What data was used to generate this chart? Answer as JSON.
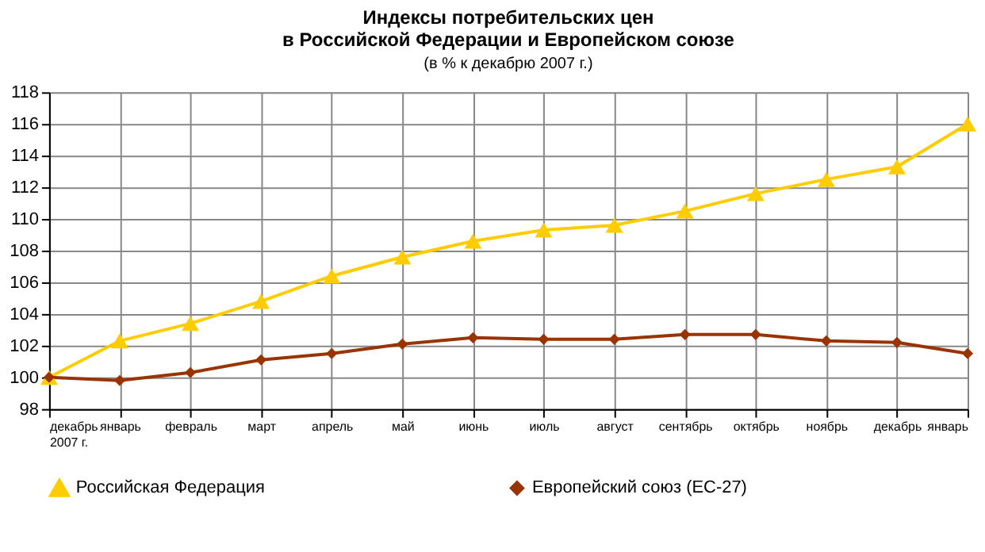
{
  "chart_data": {
    "type": "line",
    "title": "Индексы потребительских цен\nв Российской Федерации и Европейском союзе",
    "subtitle": "(в % к декабрю 2007 г.)",
    "categories": [
      "декабрь\n2007 г.",
      "январь",
      "февраль",
      "март",
      "апрель",
      "май",
      "июнь",
      "июль",
      "август",
      "сентябрь",
      "октябрь",
      "ноябрь",
      "декабрь",
      "январь"
    ],
    "series": [
      {
        "name": "Российская Федерация",
        "color": "#ffcc00",
        "marker": "triangle",
        "values": [
          100,
          102.3,
          103.4,
          104.8,
          106.4,
          107.6,
          108.6,
          109.3,
          109.6,
          110.5,
          111.6,
          112.5,
          113.3,
          116.0
        ]
      },
      {
        "name": "Европейский союз (ЕС-27)",
        "color": "#993300",
        "marker": "diamond",
        "values": [
          100,
          99.8,
          100.3,
          101.1,
          101.5,
          102.1,
          102.5,
          102.4,
          102.4,
          102.7,
          102.7,
          102.3,
          102.2,
          101.5
        ]
      }
    ],
    "ylim": [
      98,
      118
    ],
    "yticks": [
      98,
      100,
      102,
      104,
      106,
      108,
      110,
      112,
      114,
      116,
      118
    ],
    "grid": true,
    "legend": "bottom"
  }
}
